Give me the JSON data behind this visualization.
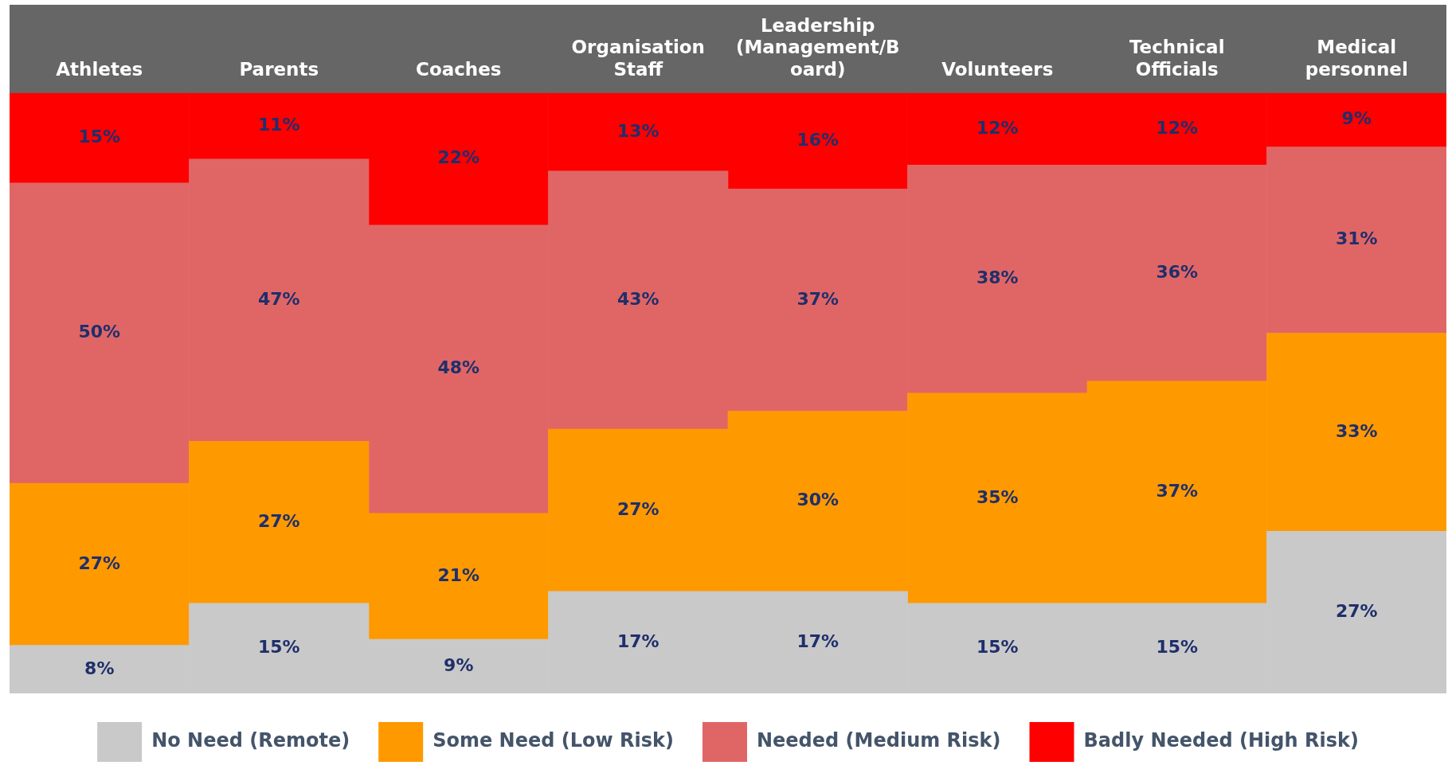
{
  "chart_data": {
    "type": "bar",
    "stacked": true,
    "legend": "bottom",
    "grid": false,
    "categories": [
      "Athletes",
      "Parents",
      "Coaches",
      "Organisation Staff",
      "Leadership (Management/Board)",
      "Volunteers",
      "Technical Officials",
      "Medical personnel"
    ],
    "series": [
      {
        "name": "No Need (Remote)",
        "color": "#c9c9c9",
        "values": [
          8,
          15,
          9,
          17,
          17,
          15,
          15,
          27
        ],
        "value_labels": [
          "8%",
          "15%",
          "9%",
          "17%",
          "17%",
          "15%",
          "15%",
          "27%"
        ]
      },
      {
        "name": "Some Need (Low Risk)",
        "color": "#ff9900",
        "values": [
          27,
          27,
          21,
          27,
          30,
          35,
          37,
          33
        ],
        "value_labels": [
          "27%",
          "27%",
          "21%",
          "27%",
          "30%",
          "35%",
          "37%",
          "33%"
        ]
      },
      {
        "name": "Needed (Medium Risk)",
        "color": "#e06666",
        "values": [
          50,
          47,
          48,
          43,
          37,
          38,
          36,
          31
        ],
        "value_labels": [
          "50%",
          "47%",
          "48%",
          "43%",
          "37%",
          "38%",
          "36%",
          "31%"
        ]
      },
      {
        "name": "Badly Needed (High Risk)",
        "color": "#ff0000",
        "values": [
          15,
          11,
          22,
          13,
          16,
          12,
          12,
          9
        ],
        "value_labels": [
          "15%",
          "11%",
          "22%",
          "13%",
          "16%",
          "12%",
          "12%",
          "9%"
        ]
      }
    ]
  }
}
